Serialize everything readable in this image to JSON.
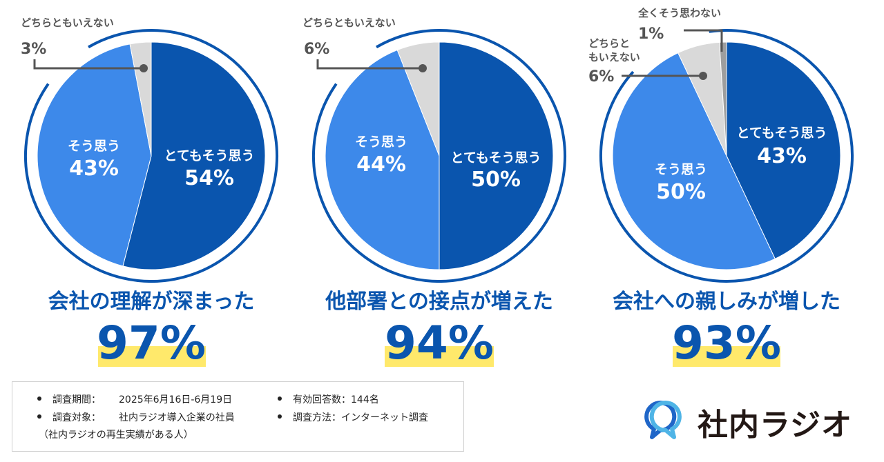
{
  "chart_data": [
    {
      "type": "pie",
      "title": "会社の理解が深まった",
      "headline": "97%",
      "slices": [
        {
          "name": "とてもそう思う",
          "value": 54,
          "value_label": "54%",
          "color": "#0A55AE"
        },
        {
          "name": "そう思う",
          "value": 43,
          "value_label": "43%",
          "color": "#3D89EA"
        },
        {
          "name": "どちらともいえない",
          "value": 3,
          "value_label": "3%",
          "color": "#D9D9D9"
        }
      ]
    },
    {
      "type": "pie",
      "title": "他部署との接点が増えた",
      "headline": "94%",
      "slices": [
        {
          "name": "とてもそう思う",
          "value": 50,
          "value_label": "50%",
          "color": "#0A55AE"
        },
        {
          "name": "そう思う",
          "value": 44,
          "value_label": "44%",
          "color": "#3D89EA"
        },
        {
          "name": "どちらともいえない",
          "value": 6,
          "value_label": "6%",
          "color": "#D9D9D9"
        }
      ]
    },
    {
      "type": "pie",
      "title": "会社への親しみが増した",
      "headline": "93%",
      "slices": [
        {
          "name": "とてもそう思う",
          "value": 43,
          "value_label": "43%",
          "color": "#0A55AE"
        },
        {
          "name": "そう思う",
          "value": 50,
          "value_label": "50%",
          "color": "#3D89EA"
        },
        {
          "name": "どちらともいえない",
          "value": 6,
          "value_label": "6%",
          "color": "#D9D9D9"
        },
        {
          "name": "全くそう思わない",
          "value": 1,
          "value_label": "1%",
          "color": "#9E9E9E"
        }
      ]
    }
  ],
  "colors": {
    "very_agree": "#0A55AE",
    "agree": "#3D89EA",
    "neutral": "#D9D9D9",
    "disagree": "#9E9E9E",
    "title": "#0A55AE",
    "highlight": "#FFE96B",
    "callout": "#555555"
  },
  "survey": {
    "period_label": "調査期間：",
    "period_value": "2025年6月16日-6月19日",
    "target_label": "調査対象：",
    "target_value": "社内ラジオ導入企業の社員",
    "target_note": "（社内ラジオの再生実績がある人）",
    "responses": "有効回答数：144名",
    "method": "調査方法：インターネット調査"
  },
  "logo": {
    "text": "社内ラジオ",
    "icon": "double-speech-bubble-icon"
  }
}
